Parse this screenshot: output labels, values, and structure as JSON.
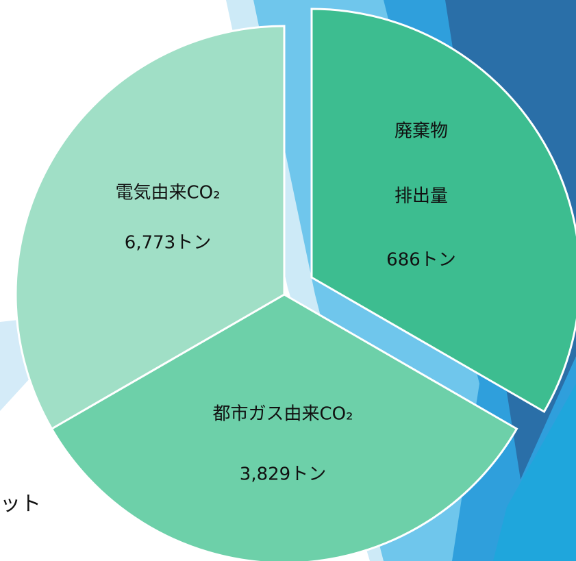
{
  "segments": [
    {
      "lines": [
        "廃棄物",
        "排出量",
        "686トン"
      ]
    },
    {
      "lines": [
        "都市ガス由来CO₂",
        "3,829トン"
      ]
    },
    {
      "lines": [
        "電気由来CO₂",
        "6,773トン"
      ]
    }
  ],
  "fragment": "ット"
}
